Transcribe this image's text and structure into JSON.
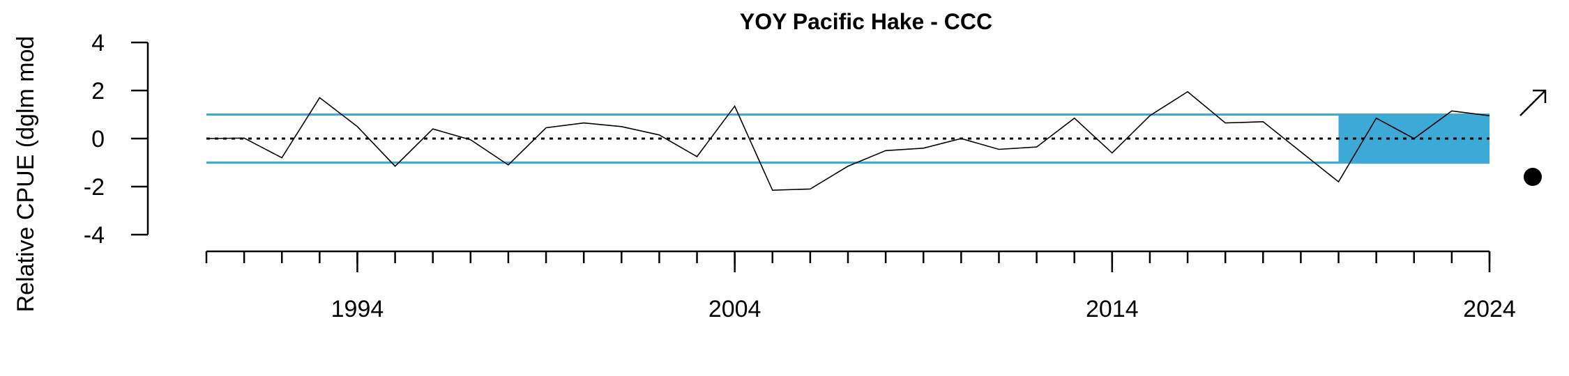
{
  "chart_data": {
    "type": "line",
    "title": "YOY Pacific Hake - CCC",
    "ylabel": "Relative CPUE (dglm mod",
    "xlabel": "",
    "xlim": [
      1990,
      2024
    ],
    "ylim": [
      -4,
      4
    ],
    "x_tick_labels": [
      "1994",
      "2004",
      "2014",
      "2024"
    ],
    "x_tick_label_values": [
      1994,
      2004,
      2014,
      2024
    ],
    "x_minor_ticks": [
      1990,
      1991,
      1992,
      1993,
      1994,
      1995,
      1996,
      1997,
      1998,
      1999,
      2000,
      2001,
      2002,
      2003,
      2004,
      2005,
      2006,
      2007,
      2008,
      2009,
      2010,
      2011,
      2012,
      2013,
      2014,
      2015,
      2016,
      2017,
      2018,
      2019,
      2020,
      2021,
      2022,
      2023,
      2024
    ],
    "y_ticks": [
      -4,
      -2,
      0,
      2,
      4
    ],
    "y_tick_labels": [
      "-4",
      "-2",
      "0",
      "2",
      "4"
    ],
    "reference_lines": {
      "mean": 0,
      "upper_sd": 1,
      "lower_sd": -1
    },
    "highlight_period": {
      "start": 2020,
      "end": 2024
    },
    "series": [
      {
        "x": [
          1990,
          1991,
          1992,
          1993,
          1994,
          1995,
          1996,
          1997,
          1998,
          1999,
          2000,
          2001,
          2002,
          2003,
          2004,
          2005,
          2006,
          2007,
          2008,
          2009,
          2010,
          2011,
          2012,
          2013,
          2014,
          2015,
          2016,
          2017,
          2018,
          2019,
          2020,
          2021,
          2022,
          2023,
          2024
        ],
        "values": [
          0.0,
          0.02,
          -0.8,
          1.7,
          0.5,
          -1.15,
          0.4,
          -0.05,
          -1.1,
          0.45,
          0.65,
          0.5,
          0.15,
          -0.75,
          1.35,
          -2.15,
          -2.1,
          -1.15,
          -0.5,
          -0.4,
          0.0,
          -0.45,
          -0.35,
          0.85,
          -0.6,
          0.95,
          1.95,
          0.65,
          0.7,
          -0.55,
          -1.8,
          0.85,
          0.0,
          1.15,
          0.95
        ]
      }
    ],
    "colors": {
      "line": "#000000",
      "band": "#3ca9d6",
      "highlight": "#3ca9d6"
    },
    "indicators": {
      "trend": "arrow-up-right-icon",
      "mean_status": "filled-circle-icon"
    }
  }
}
